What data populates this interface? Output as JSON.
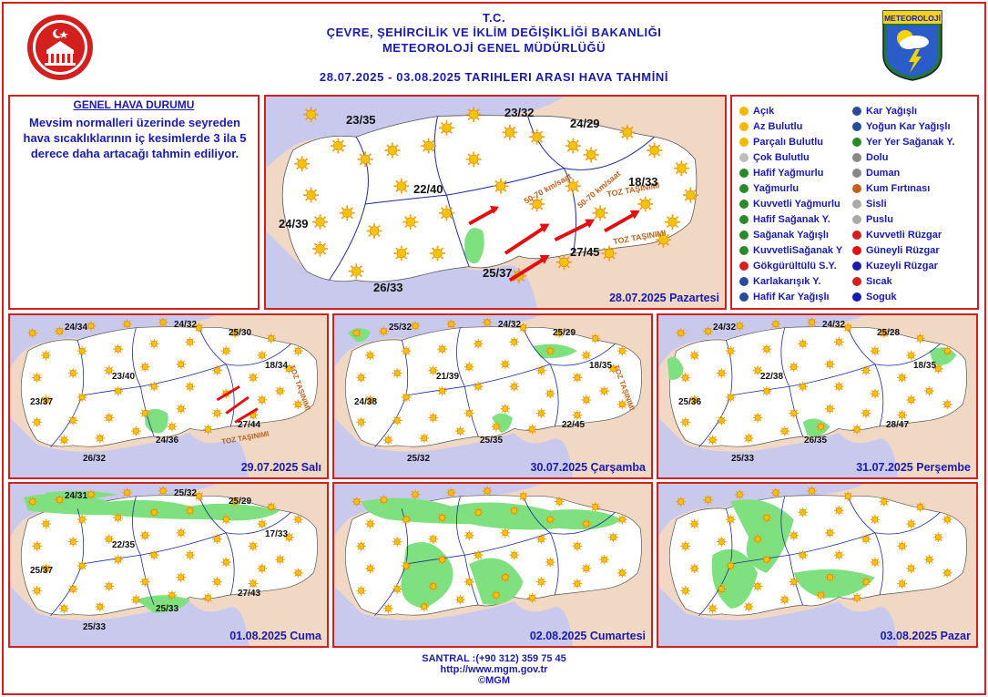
{
  "header": {
    "line1": "T.C.",
    "line2": "ÇEVRE, ŞEHİRCİLİK VE İKLİM DEĞİŞİKLİĞİ BAKANLIĞI",
    "line3": "METEOROLOJİ GENEL MÜDÜRLÜĞÜ",
    "date_range": "28.07.2025  -  03.08.2025   TARIHLERI ARASI HAVA TAHMİNİ",
    "logo_text": "METEOROLOJİ"
  },
  "genel": {
    "title": "GENEL HAVA DURUMU",
    "text": "Mevsim normalleri üzerinde seyreden hava sıcaklıklarının iç kesimlerde 3 ila 5 derece daha artacağı tahmin ediliyor."
  },
  "main_map": {
    "date_label": "28.07.2025 Pazartesi",
    "temps": [
      "23/35",
      "23/32",
      "24/29",
      "22/40",
      "18/33",
      "24/39",
      "27/45",
      "25/37",
      "26/33"
    ],
    "annotations": [
      "50-70 km/saat",
      "50-70 km/saat",
      "TOZ TAŞINIMI",
      "TOZ TAŞINIMI"
    ]
  },
  "legend": {
    "items": [
      {
        "icon": "sun-icon",
        "label": "Açık"
      },
      {
        "icon": "sun-small-cloud-icon",
        "label": "Az Bulutlu"
      },
      {
        "icon": "sun-cloud-icon",
        "label": "Parçalı Bulutlu"
      },
      {
        "icon": "cloud-icon",
        "label": "Çok Bulutlu"
      },
      {
        "icon": "light-rain-icon",
        "label": "Hafif Yağmurlu"
      },
      {
        "icon": "rain-icon",
        "label": "Yağmurlu"
      },
      {
        "icon": "heavy-rain-icon",
        "label": "Kuvvetli Yağmurlu"
      },
      {
        "icon": "light-shower-icon",
        "label": "Hafif Sağanak Y."
      },
      {
        "icon": "shower-icon",
        "label": "Sağanak Yağışlı"
      },
      {
        "icon": "heavy-shower-icon",
        "label": "KuvvetliSağanak Y"
      },
      {
        "icon": "thunder-shower-icon",
        "label": "Gökgürültülü S.Y."
      },
      {
        "icon": "sleet-icon",
        "label": "Karlakarışık Y."
      },
      {
        "icon": "light-snow-icon",
        "label": "Hafif Kar Yağışlı"
      },
      {
        "icon": "snow-icon",
        "label": "Kar Yağışlı"
      },
      {
        "icon": "heavy-snow-icon",
        "label": "Yoğun Kar Yağışlı"
      },
      {
        "icon": "local-shower-icon",
        "label": "Yer Yer Sağanak Y."
      },
      {
        "icon": "hail-icon",
        "label": "Dolu"
      },
      {
        "icon": "smoke-icon",
        "label": "Duman"
      },
      {
        "icon": "sandstorm-icon",
        "label": "Kum Fırtınası"
      },
      {
        "icon": "fog-icon",
        "label": "Sisli"
      },
      {
        "icon": "mist-icon",
        "label": "Puslu"
      },
      {
        "icon": "strong-wind-icon",
        "label": "Kuvvetli Rüzgar"
      },
      {
        "icon": "south-wind-icon",
        "label": "Güneyli Rüzgar"
      },
      {
        "icon": "north-wind-icon",
        "label": "Kuzeyli Rüzgar"
      },
      {
        "icon": "hot-icon",
        "label": "Sıcak"
      },
      {
        "icon": "cold-icon",
        "label": "Soguk"
      }
    ]
  },
  "days": [
    {
      "date_label": "29.07.2025 Salı",
      "temps": [
        "24/34",
        "24/32",
        "25/30",
        "23/40",
        "18/34",
        "23/37",
        "27/44",
        "24/36",
        "26/32"
      ],
      "annotations": [
        "TOZ TAŞINIMI",
        "TOZ TAŞINIMI"
      ]
    },
    {
      "date_label": "30.07.2025 Çarşamba",
      "temps": [
        "25/32",
        "24/32",
        "25/29",
        "21/39",
        "18/35",
        "24/38",
        "22/45",
        "25/35",
        "25/32"
      ],
      "annotations": [
        "TOZ TAŞINIMI"
      ]
    },
    {
      "date_label": "31.07.2025 Perşembe",
      "temps": [
        "24/32",
        "24/32",
        "25/28",
        "22/38",
        "18/35",
        "25/36",
        "28/47",
        "26/35",
        "25/33"
      ],
      "annotations": []
    },
    {
      "date_label": "01.08.2025 Cuma",
      "temps": [
        "24/31",
        "25/32",
        "25/29",
        "22/35",
        "17/33",
        "25/37",
        "27/43",
        "25/33",
        "25/33"
      ],
      "annotations": []
    },
    {
      "date_label": "02.08.2025 Cumartesi",
      "temps": [],
      "annotations": []
    },
    {
      "date_label": "03.08.2025 Pazar",
      "temps": [],
      "annotations": []
    }
  ],
  "footer": {
    "phone": "SANTRAL :(+90 312) 359 75 45",
    "url": "http://www.mgm.gov.tr",
    "copyright": "©MGM"
  },
  "colors": {
    "frame": "#d41f1f",
    "text_blue": "#1a1ab0",
    "land": "#ffffff",
    "sea": "#c9c9ee",
    "foreign": "#f0d8c4",
    "rain_zone": "#7fe07f",
    "wind_arrow": "#e01010",
    "sun": "#f5b800"
  }
}
